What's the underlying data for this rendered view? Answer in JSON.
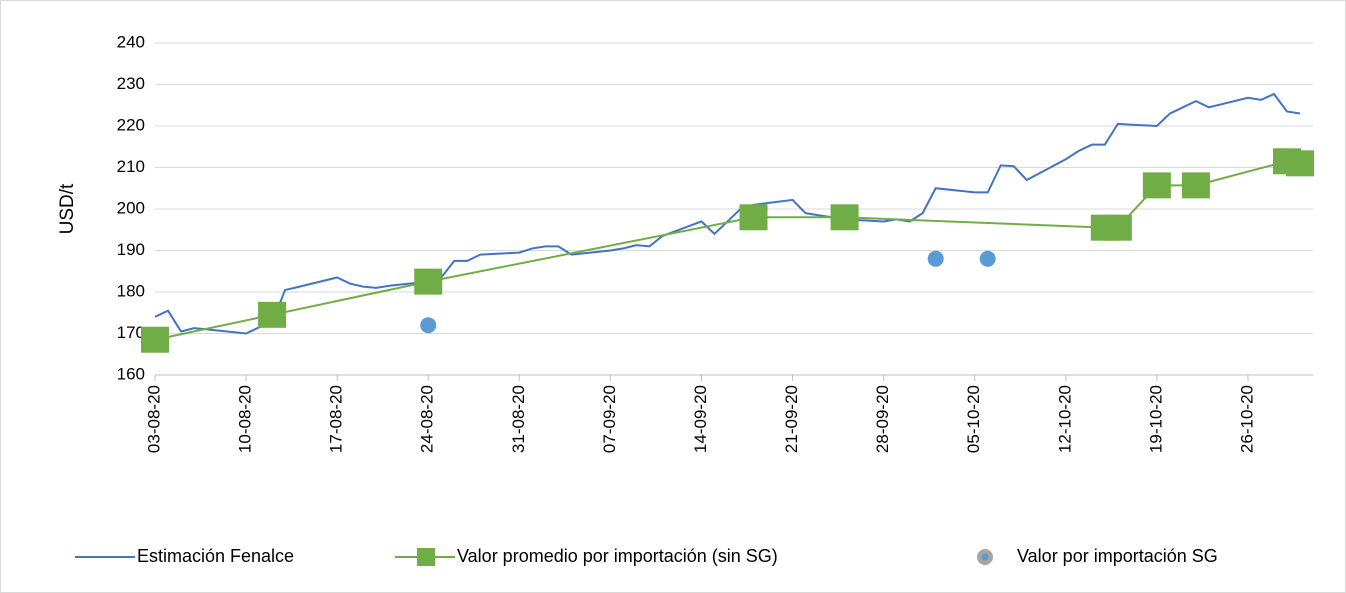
{
  "chart_data": {
    "type": "line",
    "y_label": "USD/t",
    "ylim": [
      160,
      240
    ],
    "yticks": [
      160,
      170,
      180,
      190,
      200,
      210,
      220,
      230,
      240
    ],
    "grid": true,
    "xlim": [
      "03-08-20",
      "31-10-20"
    ],
    "xticks": [
      "03-08-20",
      "10-08-20",
      "17-08-20",
      "24-08-20",
      "31-08-20",
      "07-09-20",
      "14-09-20",
      "21-09-20",
      "28-09-20",
      "05-10-20",
      "12-10-20",
      "19-10-20",
      "26-10-20"
    ],
    "legend": "bottom",
    "series": [
      {
        "name": "Estimación Fenalce",
        "color": "#4472c4",
        "marker": "none",
        "line": true,
        "x": [
          "03-08-20",
          "04-08-20",
          "05-08-20",
          "06-08-20",
          "07-08-20",
          "10-08-20",
          "11-08-20",
          "12-08-20",
          "13-08-20",
          "14-08-20",
          "17-08-20",
          "18-08-20",
          "19-08-20",
          "20-08-20",
          "21-08-20",
          "24-08-20",
          "25-08-20",
          "26-08-20",
          "27-08-20",
          "28-08-20",
          "31-08-20",
          "01-09-20",
          "02-09-20",
          "03-09-20",
          "04-09-20",
          "07-09-20",
          "08-09-20",
          "09-09-20",
          "10-09-20",
          "11-09-20",
          "14-09-20",
          "15-09-20",
          "16-09-20",
          "17-09-20",
          "18-09-20",
          "21-09-20",
          "22-09-20",
          "23-09-20",
          "24-09-20",
          "25-09-20",
          "28-09-20",
          "29-09-20",
          "30-09-20",
          "01-10-20",
          "02-10-20",
          "05-10-20",
          "06-10-20",
          "07-10-20",
          "08-10-20",
          "09-10-20",
          "12-10-20",
          "13-10-20",
          "14-10-20",
          "15-10-20",
          "16-10-20",
          "19-10-20",
          "20-10-20",
          "21-10-20",
          "22-10-20",
          "23-10-20",
          "26-10-20",
          "27-10-20",
          "28-10-20",
          "29-10-20",
          "30-10-20"
        ],
        "values": [
          174,
          175.5,
          170.5,
          171.3,
          171,
          170,
          171.5,
          172.5,
          180.5,
          181.2,
          183.5,
          182,
          181.3,
          181,
          181.5,
          182.5,
          183.5,
          187.5,
          187.5,
          189,
          189.5,
          190.5,
          191,
          191,
          189,
          190,
          190.5,
          191.3,
          191,
          193.5,
          197,
          194,
          197,
          200,
          201,
          202.2,
          199,
          198.5,
          198,
          197.5,
          197,
          197.5,
          197,
          199,
          205,
          204,
          204,
          210.5,
          210.3,
          207,
          212,
          214,
          215.5,
          215.5,
          220.5,
          220,
          223,
          224.5,
          226,
          224.5,
          226.8,
          226.3,
          227.7,
          223.5,
          223
        ]
      },
      {
        "name": "Valor promedio por importación (sin SG)",
        "color": "#70ad47",
        "marker": "square",
        "line": true,
        "x": [
          "03-08-20",
          "12-08-20",
          "24-08-20",
          "18-09-20",
          "25-09-20",
          "15-10-20",
          "16-10-20",
          "19-10-20",
          "22-10-20",
          "29-10-20",
          "30-10-20"
        ],
        "values": [
          168.5,
          174.5,
          182.5,
          198,
          198,
          195.5,
          195.5,
          205.7,
          205.7,
          211.5,
          211
        ]
      },
      {
        "name": "Valor por importación SG",
        "color": "#5b9bd5",
        "marker": "circle",
        "line": false,
        "x": [
          "24-08-20",
          "02-10-20",
          "06-10-20"
        ],
        "values": [
          172,
          188,
          188
        ]
      }
    ]
  }
}
